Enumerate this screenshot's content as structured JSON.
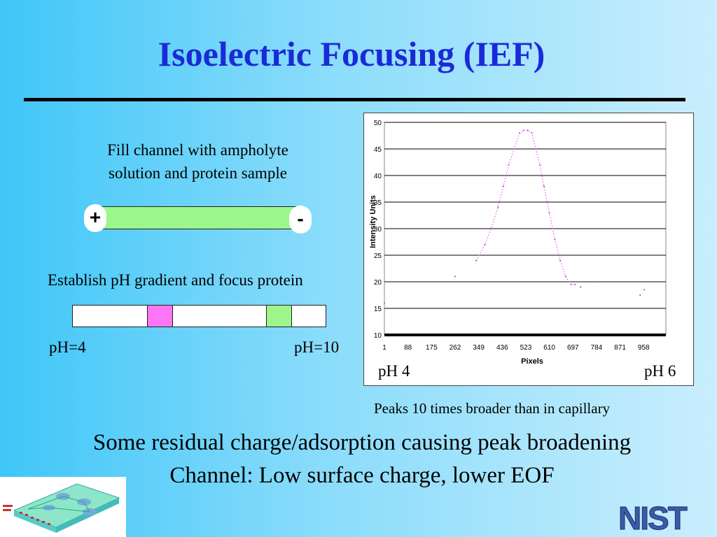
{
  "slide": {
    "title": "Isoelectric Focusing (IEF)",
    "fill_text_line1": "Fill channel with ampholyte",
    "fill_text_line2": "solution and protein sample",
    "plus_symbol": "+",
    "minus_symbol": "-",
    "gradient_text": "Establish pH gradient and focus protein",
    "ph_low_label": "pH=4",
    "ph_high_label": "pH=10",
    "chart_ph_left": "pH 4",
    "chart_ph_right": "pH 6",
    "peaks_note": "Peaks 10 times broader than in capillary",
    "bottom_line1": "Some residual charge/adsorption causing peak broadening",
    "bottom_line2": "Channel:   Low surface charge, lower EOF",
    "logo_text": "NIST"
  },
  "colors": {
    "title": "#1a2ad8",
    "channel_fill": "#9cf68a",
    "band_pink": "#fd76f3",
    "band_green": "#9ef58a",
    "trace": "#e040e0"
  },
  "chart_data": {
    "type": "scatter",
    "xlabel": "Pixels",
    "ylabel": "Intensity Units",
    "ylim": [
      10,
      50
    ],
    "yticks": [
      10,
      15,
      20,
      25,
      30,
      35,
      40,
      45,
      50
    ],
    "xticks": [
      1,
      88,
      175,
      262,
      349,
      436,
      523,
      610,
      697,
      784,
      871,
      958
    ],
    "grid": "horizontal",
    "series": [
      {
        "x": [
          1,
          262,
          340,
          372,
          395,
          420,
          440,
          460,
          480,
          500,
          515,
          530,
          545,
          560,
          575,
          590,
          610,
          630,
          650,
          670,
          690,
          705,
          725,
          790,
          945,
          960
        ],
        "y": [
          16,
          21,
          24,
          27,
          30,
          34,
          38,
          42,
          45,
          48,
          48.5,
          48.5,
          48,
          45,
          42,
          38,
          33,
          28,
          24,
          21,
          19.5,
          19.5,
          19,
          20,
          17.5,
          18.5
        ]
      }
    ]
  }
}
